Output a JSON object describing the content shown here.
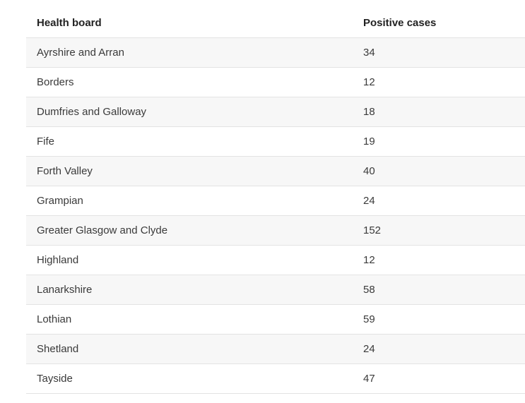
{
  "table": {
    "headers": [
      "Health board",
      "Positive cases"
    ],
    "rows": [
      [
        "Ayrshire and Arran",
        "34"
      ],
      [
        "Borders",
        "12"
      ],
      [
        "Dumfries and Galloway",
        "18"
      ],
      [
        "Fife",
        "19"
      ],
      [
        "Forth Valley",
        "40"
      ],
      [
        "Grampian",
        "24"
      ],
      [
        "Greater Glasgow and Clyde",
        "152"
      ],
      [
        "Highland",
        "12"
      ],
      [
        "Lanarkshire",
        "58"
      ],
      [
        "Lothian",
        "59"
      ],
      [
        "Shetland",
        "24"
      ],
      [
        "Tayside",
        "47"
      ]
    ]
  }
}
